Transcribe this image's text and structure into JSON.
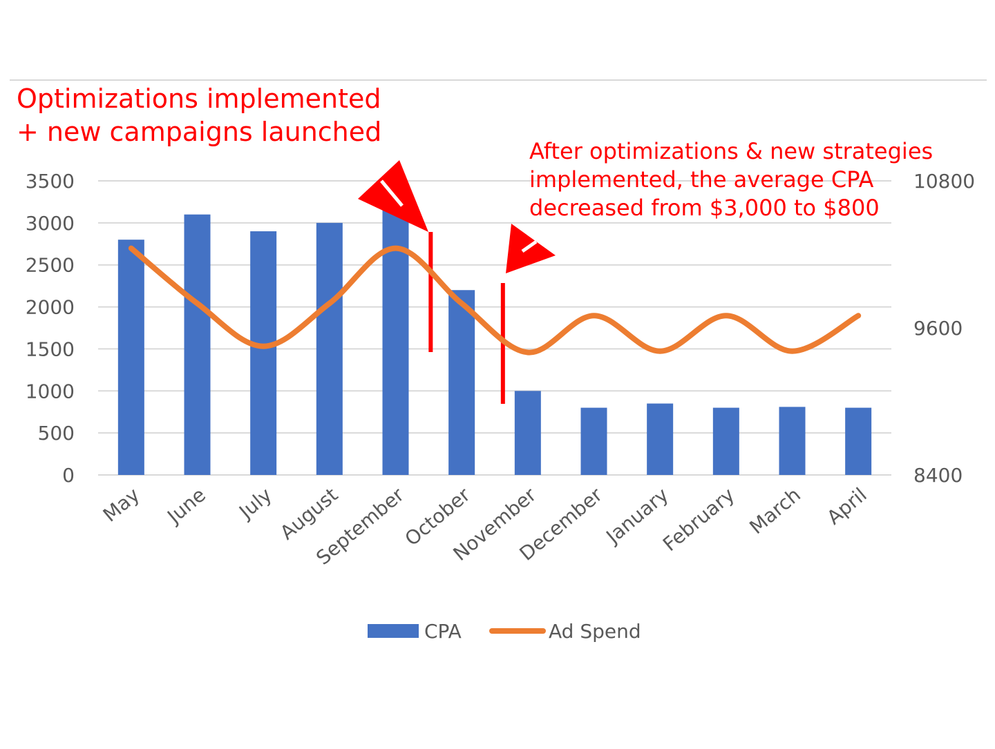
{
  "chart_data": {
    "type": "bar",
    "categories": [
      "May",
      "June",
      "July",
      "August",
      "September",
      "October",
      "November",
      "December",
      "January",
      "February",
      "March",
      "April"
    ],
    "series": [
      {
        "name": "CPA",
        "type": "bar",
        "axis": "left",
        "values": [
          2800,
          3100,
          2900,
          3000,
          3150,
          2200,
          1000,
          800,
          850,
          800,
          810,
          800
        ]
      },
      {
        "name": "Ad Spend",
        "type": "line",
        "axis": "right",
        "values": [
          10250,
          9800,
          9450,
          9800,
          10250,
          9800,
          9400,
          9700,
          9410,
          9700,
          9410,
          9700
        ]
      }
    ],
    "y_left": {
      "min": 0,
      "max": 3500,
      "ticks": [
        0,
        500,
        1000,
        1500,
        2000,
        2500,
        3000,
        3500
      ]
    },
    "y_right": {
      "min": 8400,
      "max": 10800,
      "ticks": [
        8400,
        9600,
        10800
      ]
    },
    "grid": true,
    "legend": "bottom",
    "colors": {
      "bar": "#4472c4",
      "line": "#ed7d31",
      "annotation": "#ff0000",
      "grid": "#d9d9d9",
      "text": "#595959"
    },
    "annotations": [
      {
        "lines": [
          "Optimizations implemented",
          "+ new campaigns launched"
        ],
        "marker_between": [
          "September",
          "October"
        ]
      },
      {
        "lines": [
          "After optimizations & new strategies",
          "implemented, the average CPA",
          "decreased from $3,000 to $800"
        ],
        "marker_at": "November"
      }
    ]
  }
}
